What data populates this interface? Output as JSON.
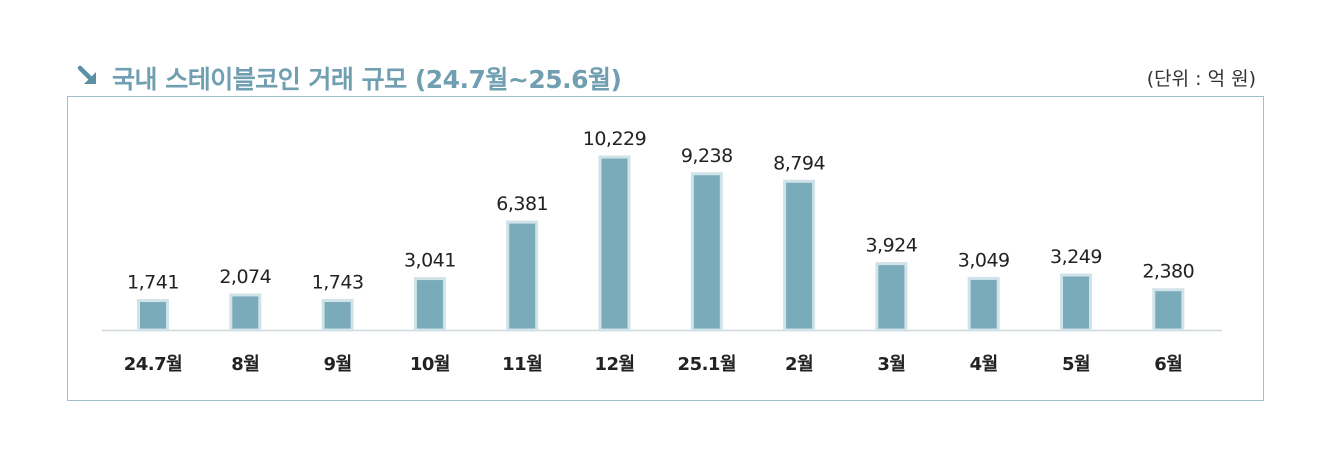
{
  "header": {
    "title": "국내 스테이블코인 거래 규모 (24.7월~25.6월)",
    "unit": "(단위 : 억 원)",
    "arrow_icon": "arrow-down-right-icon",
    "title_color": "#6f9fb0"
  },
  "chart_data": {
    "type": "bar",
    "categories": [
      "24.7월",
      "8월",
      "9월",
      "10월",
      "11월",
      "12월",
      "25.1월",
      "2월",
      "3월",
      "4월",
      "5월",
      "6월"
    ],
    "values": [
      1741,
      2074,
      1743,
      3041,
      6381,
      10229,
      9238,
      8794,
      3924,
      3049,
      3249,
      2380
    ],
    "value_labels": [
      "1,741",
      "2,074",
      "1,743",
      "3,041",
      "6,381",
      "10,229",
      "9,238",
      "8,794",
      "3,924",
      "3,049",
      "3,249",
      "2,380"
    ],
    "ylim": [
      0,
      10229
    ],
    "grid": false,
    "legend": "none",
    "colors": {
      "bar_fill": "#7aabbb",
      "bar_border": "#cfe3e9",
      "baseline": "#cfd8db",
      "frame": "#9cc0cc"
    }
  }
}
